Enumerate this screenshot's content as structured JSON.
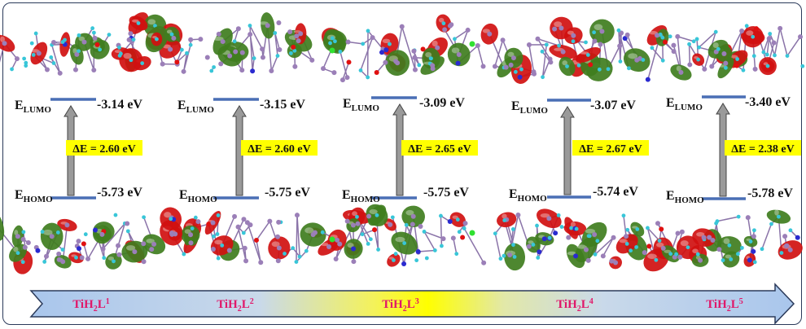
{
  "energy_unit": "eV",
  "labels": {
    "lumo_main": "E",
    "lumo_sub": "LUMO",
    "homo_main": "E",
    "homo_sub": "HOMO"
  },
  "gap_prefix": "ΔE = ",
  "complexes": [
    {
      "name_parts": [
        "TiH",
        "2",
        "L",
        "1"
      ],
      "lumo": "-3.14",
      "homo": "-5.73",
      "gap": "2.60"
    },
    {
      "name_parts": [
        "TiH",
        "2",
        "L",
        "2"
      ],
      "lumo": "-3.15",
      "homo": "-5.75",
      "gap": "2.60"
    },
    {
      "name_parts": [
        "TiH",
        "2",
        "L",
        "3"
      ],
      "lumo": "-3.09",
      "homo": "-5.75",
      "gap": "2.65"
    },
    {
      "name_parts": [
        "TiH",
        "2",
        "L",
        "4"
      ],
      "lumo": "-3.07",
      "homo": "-5.74",
      "gap": "2.67"
    },
    {
      "name_parts": [
        "TiH",
        "2",
        "L",
        "5"
      ],
      "lumo": "-3.40",
      "homo": "-5.78",
      "gap": "2.38"
    }
  ],
  "colors": {
    "level_line": "#4a6fb5",
    "arrow_fill": "#9a9a9a",
    "gap_box": "#ffff00",
    "orbital_positive": "#d01010",
    "orbital_negative": "#3f7d1e",
    "atom_carbon": "#9b7fb8",
    "atom_hydrogen": "#38c6d8",
    "atom_nitrogen": "#2a2ad0",
    "atom_oxygen": "#e01010",
    "atom_chlorine": "#30e030",
    "banner_gradient": [
      "#a9c6ec",
      "#cad9ea",
      "#ffff00",
      "#cad9ea",
      "#a9c6ec"
    ],
    "complex_label": "#e0186a"
  }
}
